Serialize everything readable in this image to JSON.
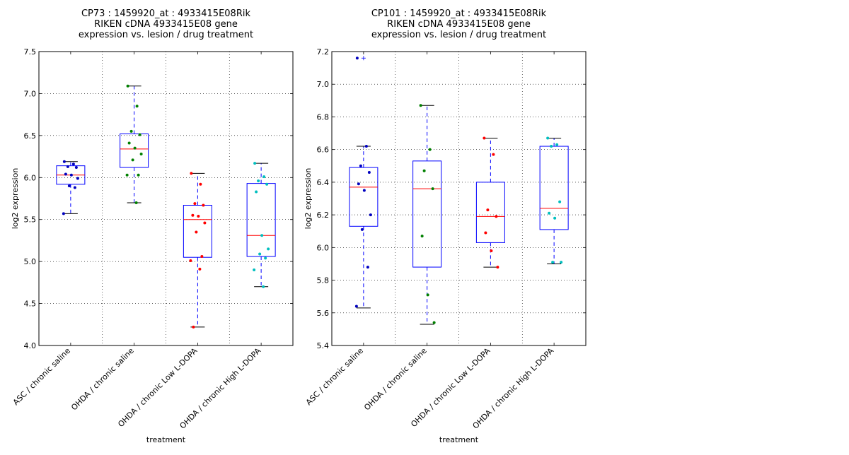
{
  "chart_data": [
    {
      "type": "box",
      "title_lines": [
        "CP73 : 1459920_at : 4933415E08Rik",
        "RIKEN cDNA 4933415E08 gene",
        "expression vs. lesion / drug treatment"
      ],
      "xlabel": "treatment",
      "ylabel": "log2 expression",
      "ylim": [
        4.0,
        7.5
      ],
      "yticks": [
        "4.0",
        "4.5",
        "5.0",
        "5.5",
        "6.0",
        "6.5",
        "7.0",
        "7.5"
      ],
      "grid": true,
      "categories": [
        "ASC / chronic saline",
        "OHDA / chronic saline",
        "OHDA / chronic Low L-DOPA",
        "OHDA / chronic High L-DOPA"
      ],
      "boxes": [
        {
          "whisker_low": 5.57,
          "q1": 5.92,
          "median": 6.03,
          "q3": 6.14,
          "whisker_high": 6.19,
          "outliers": []
        },
        {
          "whisker_low": 5.7,
          "q1": 6.12,
          "median": 6.34,
          "q3": 6.52,
          "whisker_high": 7.09,
          "outliers": []
        },
        {
          "whisker_low": 4.22,
          "q1": 5.05,
          "median": 5.5,
          "q3": 5.67,
          "whisker_high": 6.05,
          "outliers": []
        },
        {
          "whisker_low": 4.7,
          "q1": 5.06,
          "median": 5.31,
          "q3": 5.93,
          "whisker_high": 6.17,
          "outliers": []
        }
      ],
      "points": [
        {
          "color": "#0000bf",
          "values": [
            6.19,
            6.16,
            6.13,
            6.12,
            6.04,
            6.03,
            5.99,
            5.9,
            5.88,
            5.57
          ]
        },
        {
          "color": "#008000",
          "values": [
            7.09,
            6.85,
            6.55,
            6.51,
            6.41,
            6.35,
            6.28,
            6.21,
            6.03,
            6.03,
            5.7
          ]
        },
        {
          "color": "#ff0000",
          "values": [
            6.05,
            5.92,
            5.69,
            5.67,
            5.55,
            5.54,
            5.46,
            5.35,
            5.06,
            5.01,
            4.91,
            4.22
          ]
        },
        {
          "color": "#00bfbf",
          "values": [
            6.17,
            6.01,
            5.96,
            5.92,
            5.83,
            5.31,
            5.15,
            5.09,
            5.04,
            4.9,
            4.7
          ]
        }
      ]
    },
    {
      "type": "box",
      "title_lines": [
        "CP101 : 1459920_at : 4933415E08Rik",
        "RIKEN cDNA 4933415E08 gene",
        "expression vs. lesion / drug treatment"
      ],
      "xlabel": "treatment",
      "ylabel": "log2 expression",
      "ylim": [
        5.4,
        7.2
      ],
      "yticks": [
        "5.4",
        "5.6",
        "5.8",
        "6.0",
        "6.2",
        "6.4",
        "6.6",
        "6.8",
        "7.0",
        "7.2"
      ],
      "grid": true,
      "categories": [
        "ASC / chronic saline",
        "OHDA / chronic saline",
        "OHDA / chronic Low L-DOPA",
        "OHDA / chronic High L-DOPA"
      ],
      "boxes": [
        {
          "whisker_low": 5.63,
          "q1": 6.13,
          "median": 6.37,
          "q3": 6.49,
          "whisker_high": 6.62,
          "outliers": [
            7.16
          ]
        },
        {
          "whisker_low": 5.53,
          "q1": 5.88,
          "median": 6.36,
          "q3": 6.53,
          "whisker_high": 6.87,
          "outliers": []
        },
        {
          "whisker_low": 5.88,
          "q1": 6.03,
          "median": 6.19,
          "q3": 6.4,
          "whisker_high": 6.67,
          "outliers": []
        },
        {
          "whisker_low": 5.9,
          "q1": 6.11,
          "median": 6.24,
          "q3": 6.62,
          "whisker_high": 6.67,
          "outliers": []
        }
      ],
      "points": [
        {
          "color": "#0000bf",
          "values": [
            7.16,
            6.62,
            6.5,
            6.46,
            6.39,
            6.35,
            6.2,
            6.11,
            5.88,
            5.64
          ]
        },
        {
          "color": "#008000",
          "values": [
            6.87,
            6.6,
            6.47,
            6.36,
            6.07,
            5.71,
            5.54
          ]
        },
        {
          "color": "#ff0000",
          "values": [
            6.67,
            6.57,
            6.23,
            6.19,
            6.09,
            5.98,
            5.88
          ]
        },
        {
          "color": "#00bfbf",
          "values": [
            6.67,
            6.63,
            6.62,
            6.28,
            6.21,
            6.18,
            5.91,
            5.91
          ]
        }
      ]
    }
  ]
}
